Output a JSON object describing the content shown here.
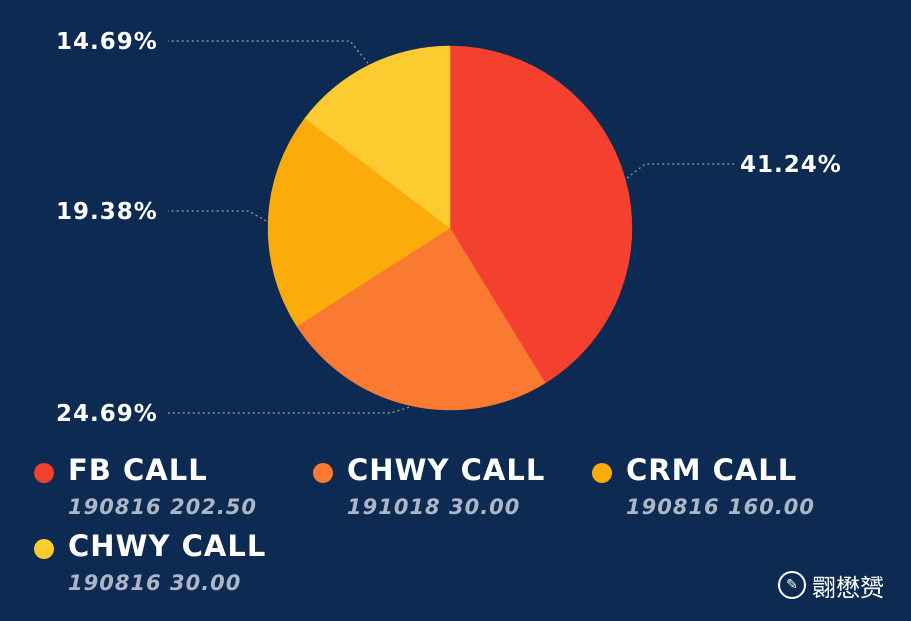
{
  "chart_data": {
    "type": "pie",
    "slices": [
      {
        "label": "FB CALL",
        "sublabel": "190816 202.50",
        "value": 41.24,
        "display": "41.24%",
        "color": "#f4402f"
      },
      {
        "label": "CHWY CALL",
        "sublabel": "191018 30.00",
        "value": 24.69,
        "display": "24.69%",
        "color": "#f97a30"
      },
      {
        "label": "CRM CALL",
        "sublabel": "190816 160.00",
        "value": 19.38,
        "display": "19.38%",
        "color": "#fbab0a"
      },
      {
        "label": "CHWY CALL",
        "sublabel": "190816 30.00",
        "value": 14.69,
        "display": "14.69%",
        "color": "#fccb2f"
      }
    ],
    "legend_position": "bottom"
  },
  "watermark": {
    "icon": "watermark-logo-icon",
    "text": "翾懋赟"
  }
}
